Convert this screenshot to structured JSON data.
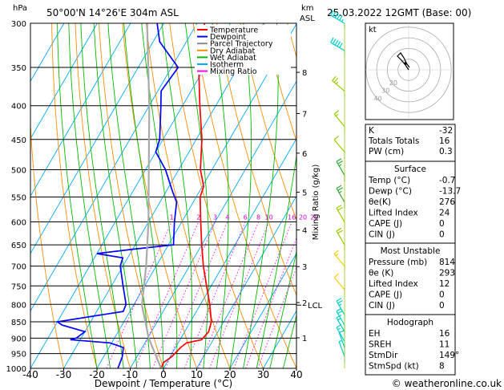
{
  "header": {
    "location": "50°00'N  14°26'E  304m  ASL",
    "datetime": "25.03.2022  12GMT  (Base: 00)",
    "hpa_label": "hPa",
    "km_label": "km",
    "asl_label": "ASL"
  },
  "chart_data": {
    "type": "line",
    "xlabel": "Dewpoint / Temperature (°C)",
    "right_axis_label": "Mixing Ratio (g/kg)",
    "x_ticks": [
      -40,
      -30,
      -20,
      -10,
      0,
      10,
      20,
      30,
      40
    ],
    "pressure_levels": [
      300,
      350,
      400,
      450,
      500,
      550,
      600,
      650,
      700,
      750,
      800,
      850,
      900,
      950,
      1000
    ],
    "xlim": [
      -40,
      40
    ],
    "ylim": [
      1000,
      300
    ],
    "y_scale": "log",
    "skew": true,
    "km_ticks": [
      {
        "km": "8",
        "p": 356
      },
      {
        "km": "7",
        "p": 411
      },
      {
        "km": "6",
        "p": 472
      },
      {
        "km": "5",
        "p": 541
      },
      {
        "km": "4",
        "p": 617
      },
      {
        "km": "3",
        "p": 701
      },
      {
        "km": "2",
        "p": 795
      },
      {
        "km": "1",
        "p": 899
      }
    ],
    "lcl_label": "LCL",
    "lcl_pressure": 802,
    "mixing_ratio_labels": [
      "1",
      "2",
      "3",
      "4",
      "6",
      "8",
      "10",
      "16",
      "20",
      "25"
    ],
    "legend": [
      "Temperature",
      "Dewpoint",
      "Parcel Trajectory",
      "Dry Adiabat",
      "Wet Adiabat",
      "Isotherm",
      "Mixing Ratio"
    ],
    "legend_colors": [
      "#ff0000",
      "#0000ff",
      "#888888",
      "#ff8c00",
      "#00bb00",
      "#00aaff",
      "#ff00ff"
    ],
    "series": [
      {
        "name": "Temperature",
        "color": "#ff0000",
        "points": [
          [
            1000,
            -0.7
          ],
          [
            980,
            -1.0
          ],
          [
            960,
            0.5
          ],
          [
            940,
            1.2
          ],
          [
            930,
            1.5
          ],
          [
            915,
            2.5
          ],
          [
            905,
            6.5
          ],
          [
            880,
            7.2
          ],
          [
            850,
            6.3
          ],
          [
            800,
            2.8
          ],
          [
            750,
            -1.4
          ],
          [
            700,
            -5.8
          ],
          [
            650,
            -10.0
          ],
          [
            600,
            -14.3
          ],
          [
            550,
            -18.8
          ],
          [
            530,
            -19.6
          ],
          [
            500,
            -23.5
          ],
          [
            450,
            -28.3
          ],
          [
            400,
            -34.8
          ],
          [
            350,
            -41.8
          ],
          [
            300,
            -47.7
          ]
        ]
      },
      {
        "name": "Dewpoint",
        "color": "#0000ff",
        "points": [
          [
            1000,
            -13.7
          ],
          [
            960,
            -14.4
          ],
          [
            930,
            -15.7
          ],
          [
            915,
            -20.5
          ],
          [
            905,
            -33.0
          ],
          [
            900,
            -31.5
          ],
          [
            880,
            -30.0
          ],
          [
            860,
            -38.0
          ],
          [
            850,
            -40.0
          ],
          [
            820,
            -22.0
          ],
          [
            800,
            -22.4
          ],
          [
            750,
            -26.5
          ],
          [
            700,
            -30.8
          ],
          [
            680,
            -31.5
          ],
          [
            670,
            -40.0
          ],
          [
            660,
            -30.0
          ],
          [
            650,
            -18.5
          ],
          [
            600,
            -22.2
          ],
          [
            560,
            -25.0
          ],
          [
            540,
            -28.0
          ],
          [
            500,
            -34.0
          ],
          [
            470,
            -40.0
          ],
          [
            450,
            -41.0
          ],
          [
            400,
            -46.5
          ],
          [
            380,
            -49.0
          ],
          [
            350,
            -48.0
          ],
          [
            320,
            -58.0
          ],
          [
            300,
            -62.0
          ]
        ]
      },
      {
        "name": "Parcel Trajectory",
        "color": "#aaaaaa",
        "points": [
          [
            1000,
            -0.7
          ],
          [
            900,
            -9.7
          ],
          [
            802,
            -17.5
          ],
          [
            700,
            -23.0
          ],
          [
            600,
            -30.0
          ],
          [
            500,
            -39.0
          ],
          [
            400,
            -50.0
          ],
          [
            300,
            -65.0
          ]
        ]
      }
    ],
    "mixing_ratios": [
      1,
      2,
      3,
      4,
      6,
      8,
      10,
      16,
      20,
      25
    ],
    "wind_barbs": [
      {
        "p": 300,
        "dir": 300,
        "spd": 55,
        "color": "#00cccc"
      },
      {
        "p": 330,
        "dir": 300,
        "spd": 50,
        "color": "#00cccc"
      },
      {
        "p": 380,
        "dir": 310,
        "spd": 25,
        "color": "#99cc00"
      },
      {
        "p": 430,
        "dir": 320,
        "spd": 15,
        "color": "#99cc00"
      },
      {
        "p": 470,
        "dir": 320,
        "spd": 10,
        "color": "#99cc00"
      },
      {
        "p": 510,
        "dir": 330,
        "spd": 25,
        "color": "#33aa33"
      },
      {
        "p": 560,
        "dir": 330,
        "spd": 25,
        "color": "#33aa33"
      },
      {
        "p": 600,
        "dir": 330,
        "spd": 20,
        "color": "#99cc00"
      },
      {
        "p": 650,
        "dir": 330,
        "spd": 20,
        "color": "#99cc00"
      },
      {
        "p": 700,
        "dir": 320,
        "spd": 15,
        "color": "#ffcc00"
      },
      {
        "p": 760,
        "dir": 320,
        "spd": 10,
        "color": "#ffcc00"
      },
      {
        "p": 830,
        "dir": 330,
        "spd": 25,
        "color": "#00cccc"
      },
      {
        "p": 860,
        "dir": 330,
        "spd": 20,
        "color": "#00cccc"
      },
      {
        "p": 880,
        "dir": 330,
        "spd": 15,
        "color": "#00cccc"
      },
      {
        "p": 910,
        "dir": 330,
        "spd": 15,
        "color": "#00cccc"
      },
      {
        "p": 930,
        "dir": 340,
        "spd": 10,
        "color": "#00cccc"
      },
      {
        "p": 960,
        "dir": 340,
        "spd": 5,
        "color": "#00cccc"
      }
    ]
  },
  "hodograph": {
    "unit_label": "kt",
    "ring_labels": [
      "10",
      "20",
      "30",
      "40"
    ]
  },
  "indices": {
    "basic": [
      {
        "label": "K",
        "value": "-32"
      },
      {
        "label": "Totals Totals",
        "value": "16"
      },
      {
        "label": "PW (cm)",
        "value": "0.3"
      }
    ],
    "surface": {
      "title": "Surface",
      "rows": [
        {
          "label": "Temp (°C)",
          "value": "-0.7"
        },
        {
          "label": "Dewp (°C)",
          "value": "-13.7"
        },
        {
          "label": "θe(K)",
          "value": "276"
        },
        {
          "label": "Lifted Index",
          "value": "24"
        },
        {
          "label": "CAPE (J)",
          "value": "0"
        },
        {
          "label": "CIN (J)",
          "value": "0"
        }
      ]
    },
    "most_unstable": {
      "title": "Most Unstable",
      "rows": [
        {
          "label": "Pressure (mb)",
          "value": "814"
        },
        {
          "label": "θe (K)",
          "value": "293"
        },
        {
          "label": "Lifted Index",
          "value": "12"
        },
        {
          "label": "CAPE (J)",
          "value": "0"
        },
        {
          "label": "CIN (J)",
          "value": "0"
        }
      ]
    },
    "hodograph": {
      "title": "Hodograph",
      "rows": [
        {
          "label": "EH",
          "value": "16"
        },
        {
          "label": "SREH",
          "value": "11"
        },
        {
          "label": "StmDir",
          "value": "149°"
        },
        {
          "label": "StmSpd (kt)",
          "value": "8"
        }
      ]
    }
  },
  "footer": {
    "copyright": "© weatheronline.co.uk"
  }
}
